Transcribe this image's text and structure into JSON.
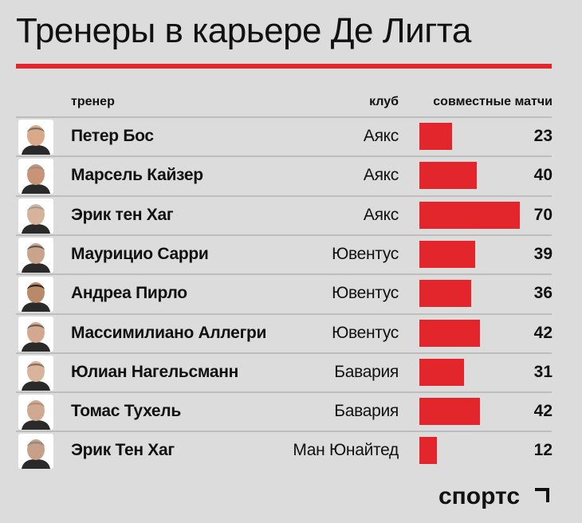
{
  "title": "Тренеры в карьере Де Лигта",
  "headers": {
    "coach": "тренер",
    "club": "клуб",
    "matches": "совместные матчи"
  },
  "chart_data": {
    "type": "bar",
    "title": "Тренеры в карьере Де Лигта",
    "categories": [
      "Петер Бос",
      "Марсель Кайзер",
      "Эрик тен Хаг",
      "Маурицио Сарри",
      "Андреа Пирло",
      "Массимилиано Аллегри",
      "Юлиан Нагельсманн",
      "Томас Тухель",
      "Эрик Тен Хаг"
    ],
    "clubs": [
      "Аякс",
      "Аякс",
      "Аякс",
      "Ювентус",
      "Ювентус",
      "Ювентус",
      "Бавария",
      "Бавария",
      "Ман Юнайтед"
    ],
    "values": [
      23,
      40,
      70,
      39,
      36,
      42,
      31,
      42,
      12
    ],
    "xlim": [
      0,
      70
    ],
    "bar_color": "#e3262b"
  },
  "rows": [
    {
      "coach": "Петер Бос",
      "club": "Аякс",
      "matches": "23"
    },
    {
      "coach": "Марсель Кайзер",
      "club": "Аякс",
      "matches": "40"
    },
    {
      "coach": "Эрик тен Хаг",
      "club": "Аякс",
      "matches": "70"
    },
    {
      "coach": "Маурицио Сарри",
      "club": "Ювентус",
      "matches": "39"
    },
    {
      "coach": "Андреа Пирло",
      "club": "Ювентус",
      "matches": "36"
    },
    {
      "coach": "Массимилиано Аллегри",
      "club": "Ювентус",
      "matches": "42"
    },
    {
      "coach": "Юлиан Нагельсманн",
      "club": "Бавария",
      "matches": "31"
    },
    {
      "coach": "Томас Тухель",
      "club": "Бавария",
      "matches": "42"
    },
    {
      "coach": "Эрик Тен Хаг",
      "club": "Ман Юнайтед",
      "matches": "12"
    }
  ],
  "logo": "спортс",
  "icons": [
    "coach-photo-icon",
    "sports-logo-mark-icon"
  ]
}
